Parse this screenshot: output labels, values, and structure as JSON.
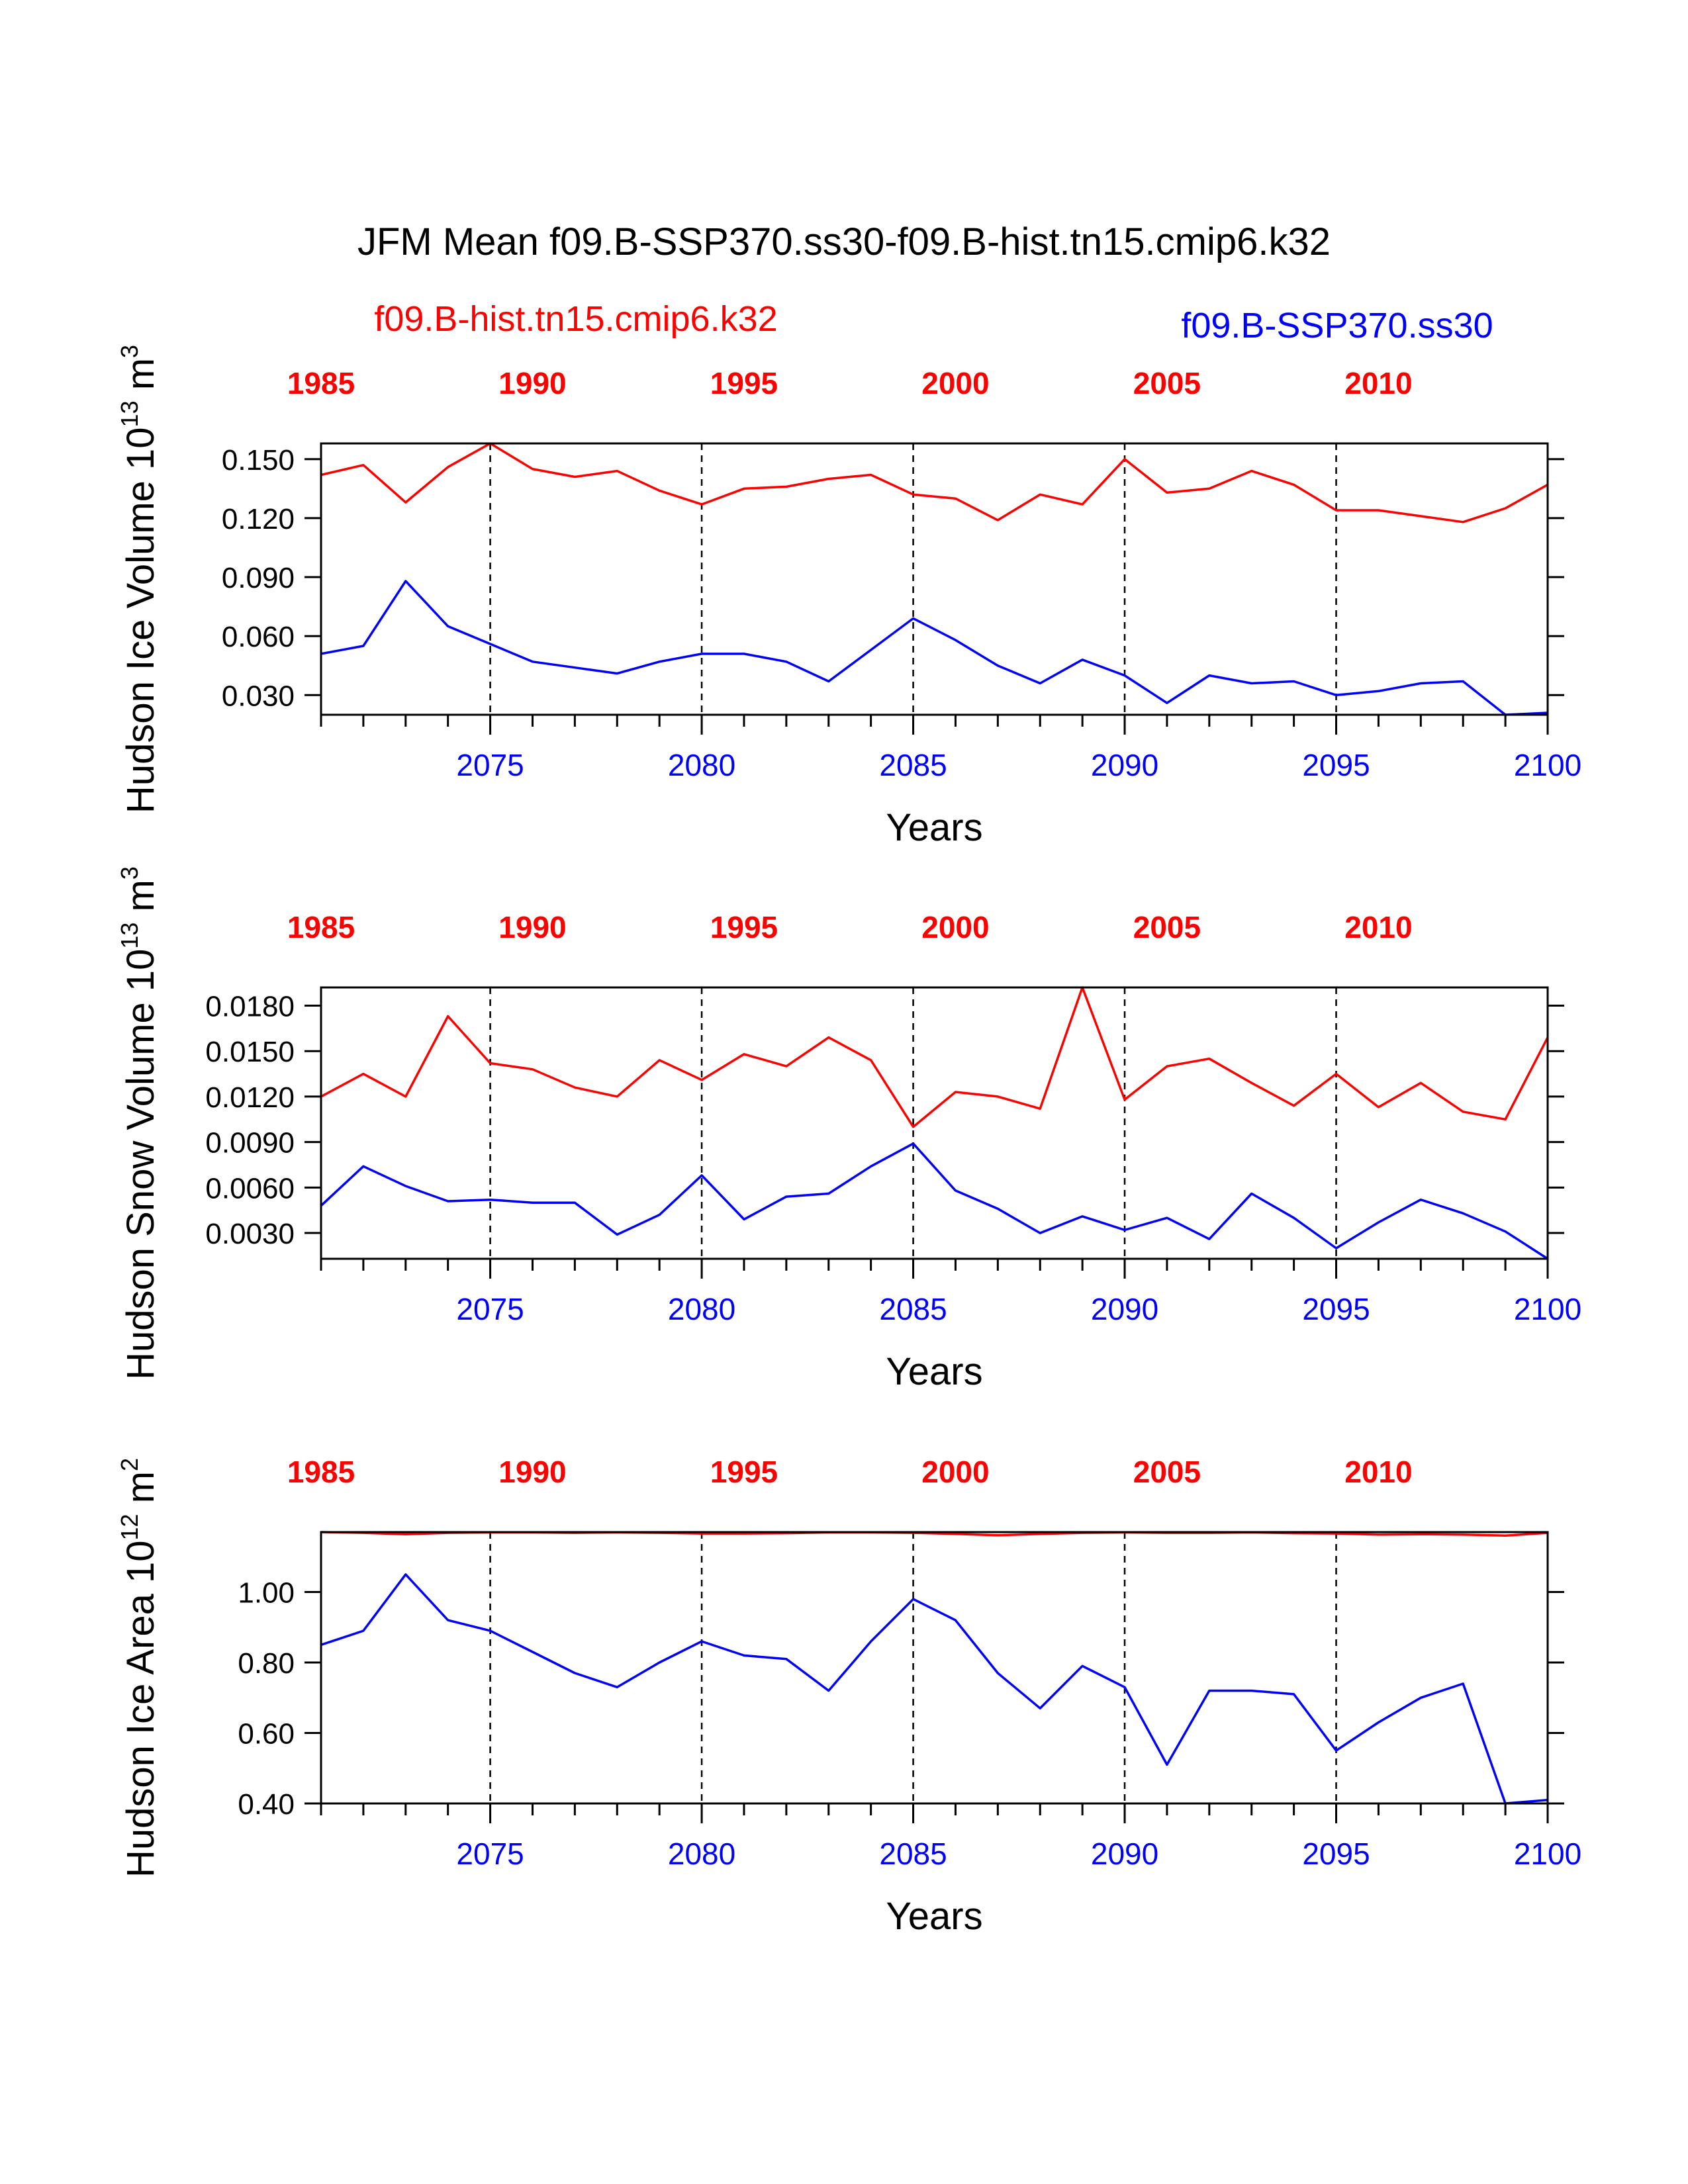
{
  "title": "JFM Mean f09.B-SSP370.ss30-f09.B-hist.tn15.cmip6.k32",
  "legend": {
    "left": "f09.B-hist.tn15.cmip6.k32",
    "right": "f09.B-SSP370.ss30"
  },
  "colors": {
    "hist": "#ff0000",
    "ssp": "#0000ff",
    "axis": "#000000"
  },
  "chart_data": [
    {
      "type": "line",
      "ylabel": "Hudson Ice Volume 10^13 m^3",
      "ylabel_main": "Hudson Ice Volume 10",
      "ylabel_exp": "13",
      "ylabel_unit": "m",
      "ylabel_unit_exp": "3",
      "xlabel": "Years",
      "ylim": [
        0.02,
        0.158
      ],
      "yticks": [
        "0.030",
        "0.060",
        "0.090",
        "0.120",
        "0.150"
      ],
      "bottom_xticks": [
        "2075",
        "2080",
        "2085",
        "2090",
        "2095",
        "2100"
      ],
      "top_xticks": [
        "1985",
        "1990",
        "1995",
        "2000",
        "2005",
        "2010"
      ],
      "x": [
        2071,
        2072,
        2073,
        2074,
        2075,
        2076,
        2077,
        2078,
        2079,
        2080,
        2081,
        2082,
        2083,
        2084,
        2085,
        2086,
        2087,
        2088,
        2089,
        2090,
        2091,
        2092,
        2093,
        2094,
        2095,
        2096,
        2097,
        2098,
        2099,
        2100
      ],
      "series": [
        {
          "name": "f09.B-hist.tn15.cmip6.k32",
          "color": "#ff0000",
          "values": [
            0.142,
            0.147,
            0.128,
            0.146,
            0.158,
            0.145,
            0.141,
            0.144,
            0.134,
            0.127,
            0.135,
            0.136,
            0.14,
            0.142,
            0.132,
            0.13,
            0.119,
            0.132,
            0.127,
            0.15,
            0.133,
            0.135,
            0.144,
            0.137,
            0.124,
            0.124,
            0.121,
            0.118,
            0.125,
            0.137
          ]
        },
        {
          "name": "f09.B-SSP370.ss30",
          "color": "#0000ff",
          "values": [
            0.051,
            0.055,
            0.088,
            0.065,
            0.056,
            0.047,
            0.044,
            0.041,
            0.047,
            0.051,
            0.051,
            0.047,
            0.037,
            0.053,
            0.069,
            0.058,
            0.045,
            0.036,
            0.048,
            0.04,
            0.026,
            0.04,
            0.036,
            0.037,
            0.03,
            0.032,
            0.036,
            0.037,
            0.02,
            0.021
          ]
        }
      ]
    },
    {
      "type": "line",
      "ylabel": "Hudson Snow Volume 10^13 m^3",
      "ylabel_main": "Hudson Snow Volume 10",
      "ylabel_exp": "13",
      "ylabel_unit": "m",
      "ylabel_unit_exp": "3",
      "xlabel": "Years",
      "ylim": [
        0.0013,
        0.0192
      ],
      "yticks": [
        "0.0030",
        "0.0060",
        "0.0090",
        "0.0120",
        "0.0150",
        "0.0180"
      ],
      "bottom_xticks": [
        "2075",
        "2080",
        "2085",
        "2090",
        "2095",
        "2100"
      ],
      "top_xticks": [
        "1985",
        "1990",
        "1995",
        "2000",
        "2005",
        "2010"
      ],
      "x": [
        2071,
        2072,
        2073,
        2074,
        2075,
        2076,
        2077,
        2078,
        2079,
        2080,
        2081,
        2082,
        2083,
        2084,
        2085,
        2086,
        2087,
        2088,
        2089,
        2090,
        2091,
        2092,
        2093,
        2094,
        2095,
        2096,
        2097,
        2098,
        2099,
        2100
      ],
      "series": [
        {
          "name": "f09.B-hist.tn15.cmip6.k32",
          "color": "#ff0000",
          "values": [
            0.012,
            0.0135,
            0.012,
            0.0173,
            0.0142,
            0.0138,
            0.0126,
            0.012,
            0.0144,
            0.0131,
            0.0148,
            0.014,
            0.0159,
            0.0144,
            0.01,
            0.0123,
            0.012,
            0.0112,
            0.0192,
            0.0118,
            0.014,
            0.0145,
            0.0129,
            0.0114,
            0.0135,
            0.0113,
            0.0129,
            0.011,
            0.0105,
            0.0159
          ]
        },
        {
          "name": "f09.B-SSP370.ss30",
          "color": "#0000ff",
          "values": [
            0.0048,
            0.0074,
            0.0061,
            0.0051,
            0.0052,
            0.005,
            0.005,
            0.0029,
            0.0042,
            0.0068,
            0.0039,
            0.0054,
            0.0056,
            0.0074,
            0.0089,
            0.0058,
            0.0046,
            0.003,
            0.0041,
            0.0032,
            0.004,
            0.0026,
            0.0056,
            0.004,
            0.002,
            0.0037,
            0.0052,
            0.0043,
            0.0031,
            0.0013
          ]
        }
      ]
    },
    {
      "type": "line",
      "ylabel": "Hudson Ice Area 10^12 m^2",
      "ylabel_main": "Hudson Ice Area 10",
      "ylabel_exp": "12",
      "ylabel_unit": "m",
      "ylabel_unit_exp": "2",
      "xlabel": "Years",
      "ylim": [
        0.4,
        1.17
      ],
      "yticks": [
        "0.40",
        "0.60",
        "0.80",
        "1.00"
      ],
      "bottom_xticks": [
        "2075",
        "2080",
        "2085",
        "2090",
        "2095",
        "2100"
      ],
      "top_xticks": [
        "1985",
        "1990",
        "1995",
        "2000",
        "2005",
        "2010"
      ],
      "x": [
        2071,
        2072,
        2073,
        2074,
        2075,
        2076,
        2077,
        2078,
        2079,
        2080,
        2081,
        2082,
        2083,
        2084,
        2085,
        2086,
        2087,
        2088,
        2089,
        2090,
        2091,
        2092,
        2093,
        2094,
        2095,
        2096,
        2097,
        2098,
        2099,
        2100
      ],
      "series": [
        {
          "name": "f09.B-hist.tn15.cmip6.k32",
          "color": "#ff0000",
          "values": [
            1.17,
            1.168,
            1.164,
            1.168,
            1.169,
            1.169,
            1.168,
            1.169,
            1.168,
            1.166,
            1.166,
            1.167,
            1.169,
            1.169,
            1.168,
            1.165,
            1.161,
            1.165,
            1.168,
            1.169,
            1.168,
            1.168,
            1.169,
            1.167,
            1.166,
            1.163,
            1.164,
            1.163,
            1.16,
            1.168
          ]
        },
        {
          "name": "f09.B-SSP370.ss30",
          "color": "#0000ff",
          "values": [
            0.85,
            0.89,
            1.05,
            0.92,
            0.89,
            0.83,
            0.77,
            0.73,
            0.8,
            0.86,
            0.82,
            0.81,
            0.72,
            0.86,
            0.98,
            0.92,
            0.77,
            0.67,
            0.79,
            0.73,
            0.51,
            0.72,
            0.72,
            0.71,
            0.55,
            0.63,
            0.7,
            0.74,
            0.4,
            0.41
          ]
        }
      ]
    }
  ]
}
